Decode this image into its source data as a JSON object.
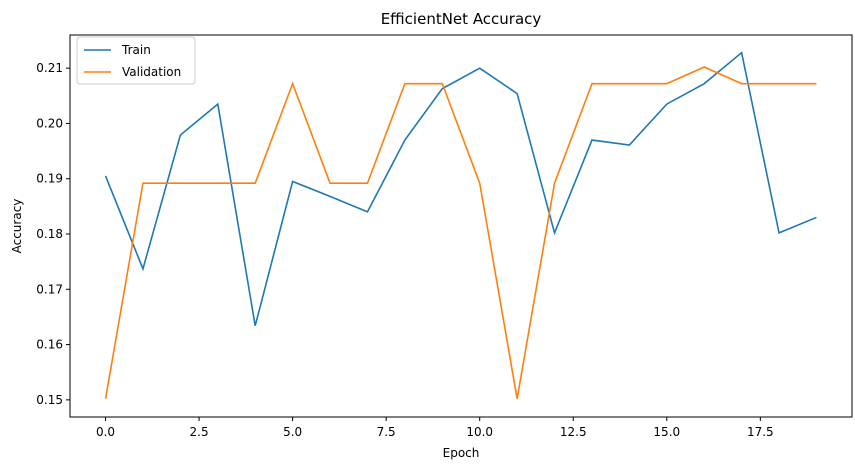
{
  "chart_data": {
    "type": "line",
    "title": "EfficientNet Accuracy",
    "xlabel": "Epoch",
    "ylabel": "Accuracy",
    "x": [
      0,
      1,
      2,
      3,
      4,
      5,
      6,
      7,
      8,
      9,
      10,
      11,
      12,
      13,
      14,
      15,
      16,
      17,
      18,
      19
    ],
    "xlim": [
      -0.95,
      19.95
    ],
    "ylim": [
      0.1469,
      0.216
    ],
    "xticks": [
      0.0,
      2.5,
      5.0,
      7.5,
      10.0,
      12.5,
      15.0,
      17.5
    ],
    "xtick_labels": [
      "0.0",
      "2.5",
      "5.0",
      "7.5",
      "10.0",
      "12.5",
      "15.0",
      "17.5"
    ],
    "yticks": [
      0.15,
      0.16,
      0.17,
      0.18,
      0.19,
      0.2,
      0.21
    ],
    "ytick_labels": [
      "0.15",
      "0.16",
      "0.17",
      "0.18",
      "0.19",
      "0.20",
      "0.21"
    ],
    "grid": false,
    "legend_position": "top-left",
    "series": [
      {
        "name": "Train",
        "color": "#1f77b4",
        "values": [
          0.1905,
          0.1737,
          0.1979,
          0.2035,
          0.1634,
          0.1895,
          0.1868,
          0.184,
          0.197,
          0.2063,
          0.21,
          0.2054,
          0.1802,
          0.197,
          0.1961,
          0.2035,
          0.2072,
          0.2128,
          0.1802,
          0.183
        ]
      },
      {
        "name": "Validation",
        "color": "#ff7f0e",
        "values": [
          0.1502,
          0.1892,
          0.1892,
          0.1892,
          0.1892,
          0.2072,
          0.1892,
          0.1892,
          0.2072,
          0.2072,
          0.1892,
          0.1502,
          0.1892,
          0.2072,
          0.2072,
          0.2072,
          0.2102,
          0.2072,
          0.2072,
          0.2072
        ]
      }
    ]
  }
}
